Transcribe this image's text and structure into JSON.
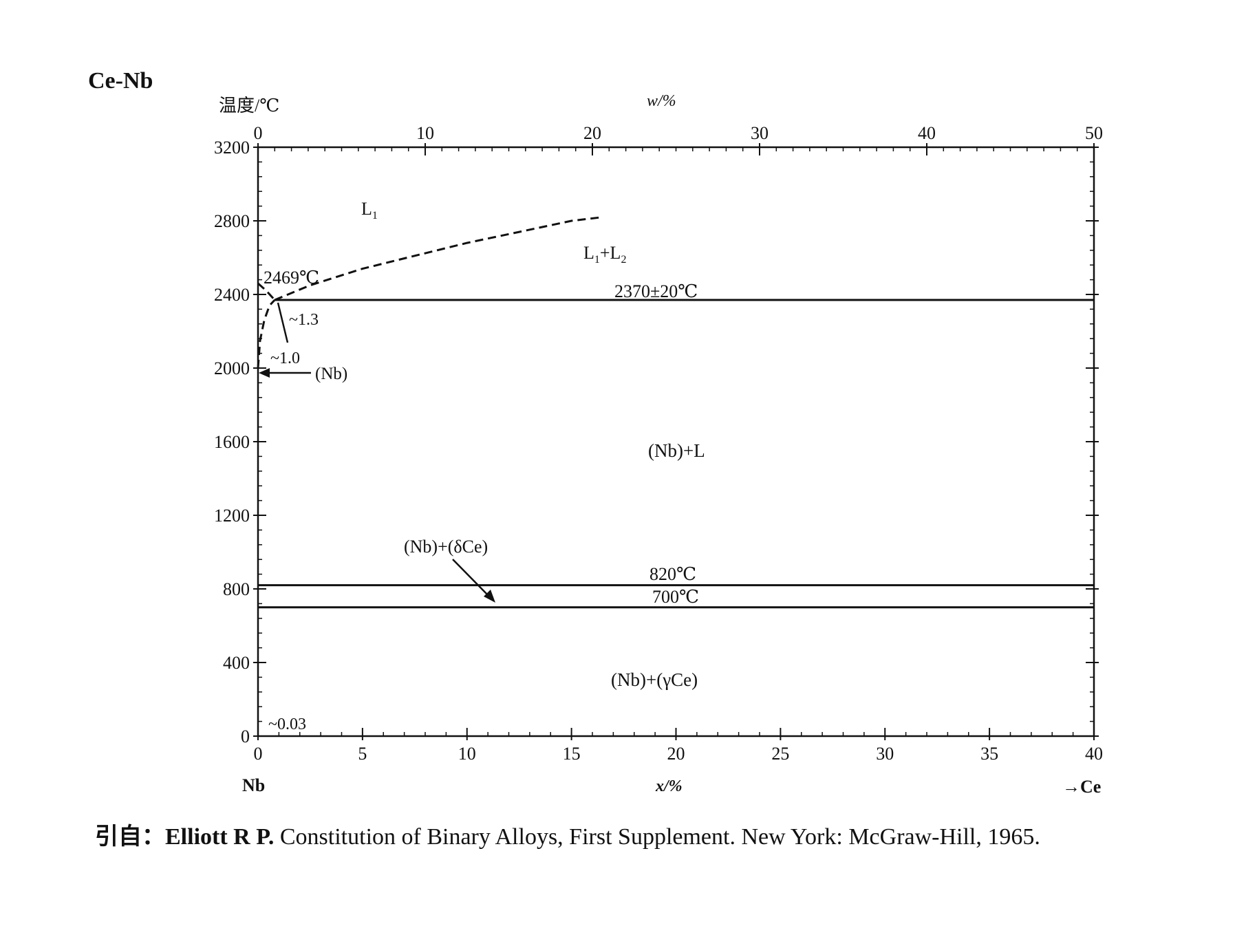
{
  "chart_data": {
    "type": "line",
    "system_title": "Ce-Nb",
    "ylabel": "温度/℃",
    "xlabel_bottom": "x/%",
    "xlabel_top": "w/%",
    "left_element": "Nb",
    "right_element": "→Ce",
    "ylim": [
      0,
      3200
    ],
    "xlim_bottom": [
      0,
      40
    ],
    "xlim_top": [
      0,
      50
    ],
    "y_ticks": [
      0,
      400,
      800,
      1200,
      1600,
      2000,
      2400,
      2800,
      3200
    ],
    "x_ticks_bottom": [
      0,
      5,
      10,
      15,
      20,
      25,
      30,
      35,
      40
    ],
    "x_ticks_top": [
      0,
      10,
      20,
      30,
      40,
      50
    ],
    "grid": false,
    "series": [
      {
        "style": "solid",
        "x": [
          0.8,
          40
        ],
        "y": [
          2370,
          2370
        ]
      },
      {
        "style": "solid",
        "x": [
          0,
          40
        ],
        "y": [
          820,
          820
        ]
      },
      {
        "style": "solid",
        "x": [
          0,
          40
        ],
        "y": [
          700,
          700
        ]
      },
      {
        "style": "dashed",
        "x": [
          0.8,
          2.5,
          5,
          7.5,
          10,
          12.5,
          15,
          16.5
        ],
        "y": [
          2370,
          2450,
          2540,
          2610,
          2680,
          2740,
          2800,
          2820
        ]
      },
      {
        "style": "dashed",
        "x": [
          0,
          0.1,
          0.3,
          0.55,
          0.8
        ],
        "y": [
          2000,
          2150,
          2260,
          2340,
          2370
        ]
      },
      {
        "style": "dashed",
        "x": [
          0,
          0.4,
          0.8
        ],
        "y": [
          2460,
          2420,
          2370
        ]
      }
    ],
    "annotations": {
      "l1": "L",
      "l1_sub": "1",
      "l1l2_a": "L",
      "l1l2_a_sub": "1",
      "l1l2_plus": "+L",
      "l1l2_b_sub": "2",
      "nb_melt": "2469℃",
      "monotectic": "2370±20℃",
      "approx13": "~1.3",
      "approx10": "~1.0",
      "nb_phase": "(Nb)",
      "nb_plus_l": "(Nb)+L",
      "nb_delta_ce": "(Nb)+(δCe)",
      "t820": "820℃",
      "t700": "700℃",
      "nb_gamma_ce": "(Nb)+(γCe)",
      "approx003": "~0.03"
    }
  },
  "citation": {
    "prefix": "引自：",
    "author": "Elliott R P.",
    "text": " Constitution of Binary Alloys, First Supplement. New York: McGraw-Hill, 1965."
  }
}
